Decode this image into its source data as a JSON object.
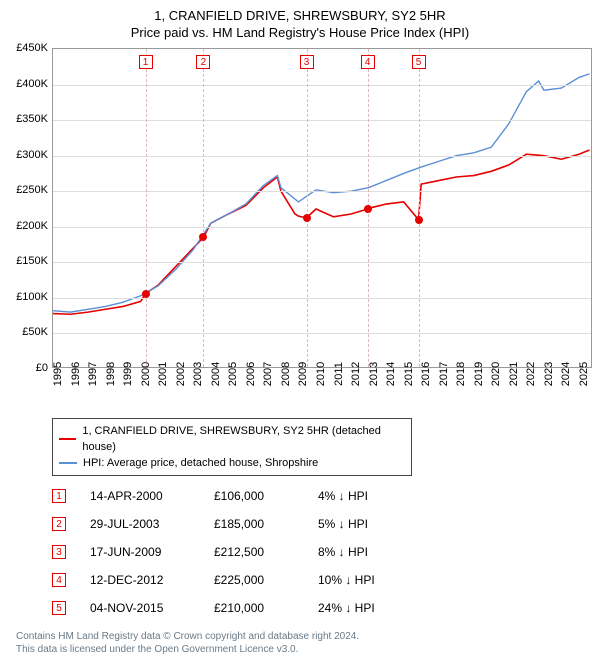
{
  "title": "1, CRANFIELD DRIVE, SHREWSBURY, SY2 5HR",
  "subtitle": "Price paid vs. HM Land Registry's House Price Index (HPI)",
  "chart": {
    "type": "line",
    "y_axis": {
      "min": 0,
      "max": 450000,
      "step": 50000,
      "labels": [
        "£0",
        "£50K",
        "£100K",
        "£150K",
        "£200K",
        "£250K",
        "£300K",
        "£350K",
        "£400K",
        "£450K"
      ]
    },
    "x_axis": {
      "min": 1995,
      "max": 2025.8,
      "labels": [
        "1995",
        "1996",
        "1997",
        "1998",
        "1999",
        "2000",
        "2001",
        "2002",
        "2003",
        "2004",
        "2005",
        "2006",
        "2007",
        "2008",
        "2009",
        "2010",
        "2011",
        "2012",
        "2013",
        "2014",
        "2015",
        "2016",
        "2017",
        "2018",
        "2019",
        "2020",
        "2021",
        "2022",
        "2023",
        "2024",
        "2025"
      ]
    },
    "series": [
      {
        "name": "1, CRANFIELD DRIVE, SHREWSBURY, SY2 5HR (detached house)",
        "color": "#e60000",
        "width": 1.6,
        "points": [
          [
            1995,
            78000
          ],
          [
            1996,
            77000
          ],
          [
            1997,
            80000
          ],
          [
            1998,
            84000
          ],
          [
            1999,
            88000
          ],
          [
            2000,
            95000
          ],
          [
            2000.28,
            106000
          ],
          [
            2001,
            118000
          ],
          [
            2002,
            144000
          ],
          [
            2003,
            170000
          ],
          [
            2003.58,
            185000
          ],
          [
            2004,
            205000
          ],
          [
            2005,
            218000
          ],
          [
            2006,
            230000
          ],
          [
            2007,
            255000
          ],
          [
            2007.8,
            270000
          ],
          [
            2008,
            250000
          ],
          [
            2008.8,
            218000
          ],
          [
            2009,
            215000
          ],
          [
            2009.46,
            212500
          ],
          [
            2010,
            225000
          ],
          [
            2011,
            214000
          ],
          [
            2012,
            218000
          ],
          [
            2012.95,
            225000
          ],
          [
            2013,
            226000
          ],
          [
            2014,
            232000
          ],
          [
            2015,
            235000
          ],
          [
            2015.85,
            210000
          ],
          [
            2016,
            260000
          ],
          [
            2017,
            265000
          ],
          [
            2018,
            270000
          ],
          [
            2019,
            272000
          ],
          [
            2020,
            278000
          ],
          [
            2021,
            287000
          ],
          [
            2022,
            302000
          ],
          [
            2023,
            300000
          ],
          [
            2024,
            295000
          ],
          [
            2025,
            302000
          ],
          [
            2025.6,
            308000
          ]
        ]
      },
      {
        "name": "HPI: Average price, detached house, Shropshire",
        "color": "#5b8fd6",
        "width": 1.4,
        "points": [
          [
            1995,
            82000
          ],
          [
            1996,
            80000
          ],
          [
            1997,
            84000
          ],
          [
            1998,
            88000
          ],
          [
            1999,
            94000
          ],
          [
            2000,
            103000
          ],
          [
            2001,
            117000
          ],
          [
            2002,
            140000
          ],
          [
            2003,
            168000
          ],
          [
            2004,
            205000
          ],
          [
            2005,
            218000
          ],
          [
            2006,
            232000
          ],
          [
            2007,
            258000
          ],
          [
            2007.8,
            272000
          ],
          [
            2008,
            255000
          ],
          [
            2009,
            235000
          ],
          [
            2010,
            252000
          ],
          [
            2011,
            248000
          ],
          [
            2012,
            250000
          ],
          [
            2013,
            255000
          ],
          [
            2014,
            265000
          ],
          [
            2015,
            275000
          ],
          [
            2016,
            284000
          ],
          [
            2017,
            292000
          ],
          [
            2018,
            300000
          ],
          [
            2019,
            304000
          ],
          [
            2020,
            312000
          ],
          [
            2021,
            345000
          ],
          [
            2022,
            390000
          ],
          [
            2022.7,
            405000
          ],
          [
            2023,
            392000
          ],
          [
            2024,
            395000
          ],
          [
            2025,
            410000
          ],
          [
            2025.6,
            415000
          ]
        ]
      }
    ],
    "markers": [
      {
        "num": "1",
        "x": 2000.28,
        "y": 106000
      },
      {
        "num": "2",
        "x": 2003.58,
        "y": 185000
      },
      {
        "num": "3",
        "x": 2009.46,
        "y": 212500
      },
      {
        "num": "4",
        "x": 2012.95,
        "y": 225000
      },
      {
        "num": "5",
        "x": 2015.85,
        "y": 210000
      }
    ],
    "vline_color": "#dcbaba",
    "grid_color": "#dddddd",
    "background": "#ffffff",
    "axis_font_size": 11
  },
  "legend": [
    {
      "color": "#e60000",
      "label": "1, CRANFIELD DRIVE, SHREWSBURY, SY2 5HR (detached house)"
    },
    {
      "color": "#5b8fd6",
      "label": "HPI: Average price, detached house, Shropshire"
    }
  ],
  "sales": [
    {
      "num": "1",
      "date": "14-APR-2000",
      "price": "£106,000",
      "diff": "4% ↓ HPI"
    },
    {
      "num": "2",
      "date": "29-JUL-2003",
      "price": "£185,000",
      "diff": "5% ↓ HPI"
    },
    {
      "num": "3",
      "date": "17-JUN-2009",
      "price": "£212,500",
      "diff": "8% ↓ HPI"
    },
    {
      "num": "4",
      "date": "12-DEC-2012",
      "price": "£225,000",
      "diff": "10% ↓ HPI"
    },
    {
      "num": "5",
      "date": "04-NOV-2015",
      "price": "£210,000",
      "diff": "24% ↓ HPI"
    }
  ],
  "footer": {
    "line1": "Contains HM Land Registry data © Crown copyright and database right 2024.",
    "line2": "This data is licensed under the Open Government Licence v3.0."
  }
}
